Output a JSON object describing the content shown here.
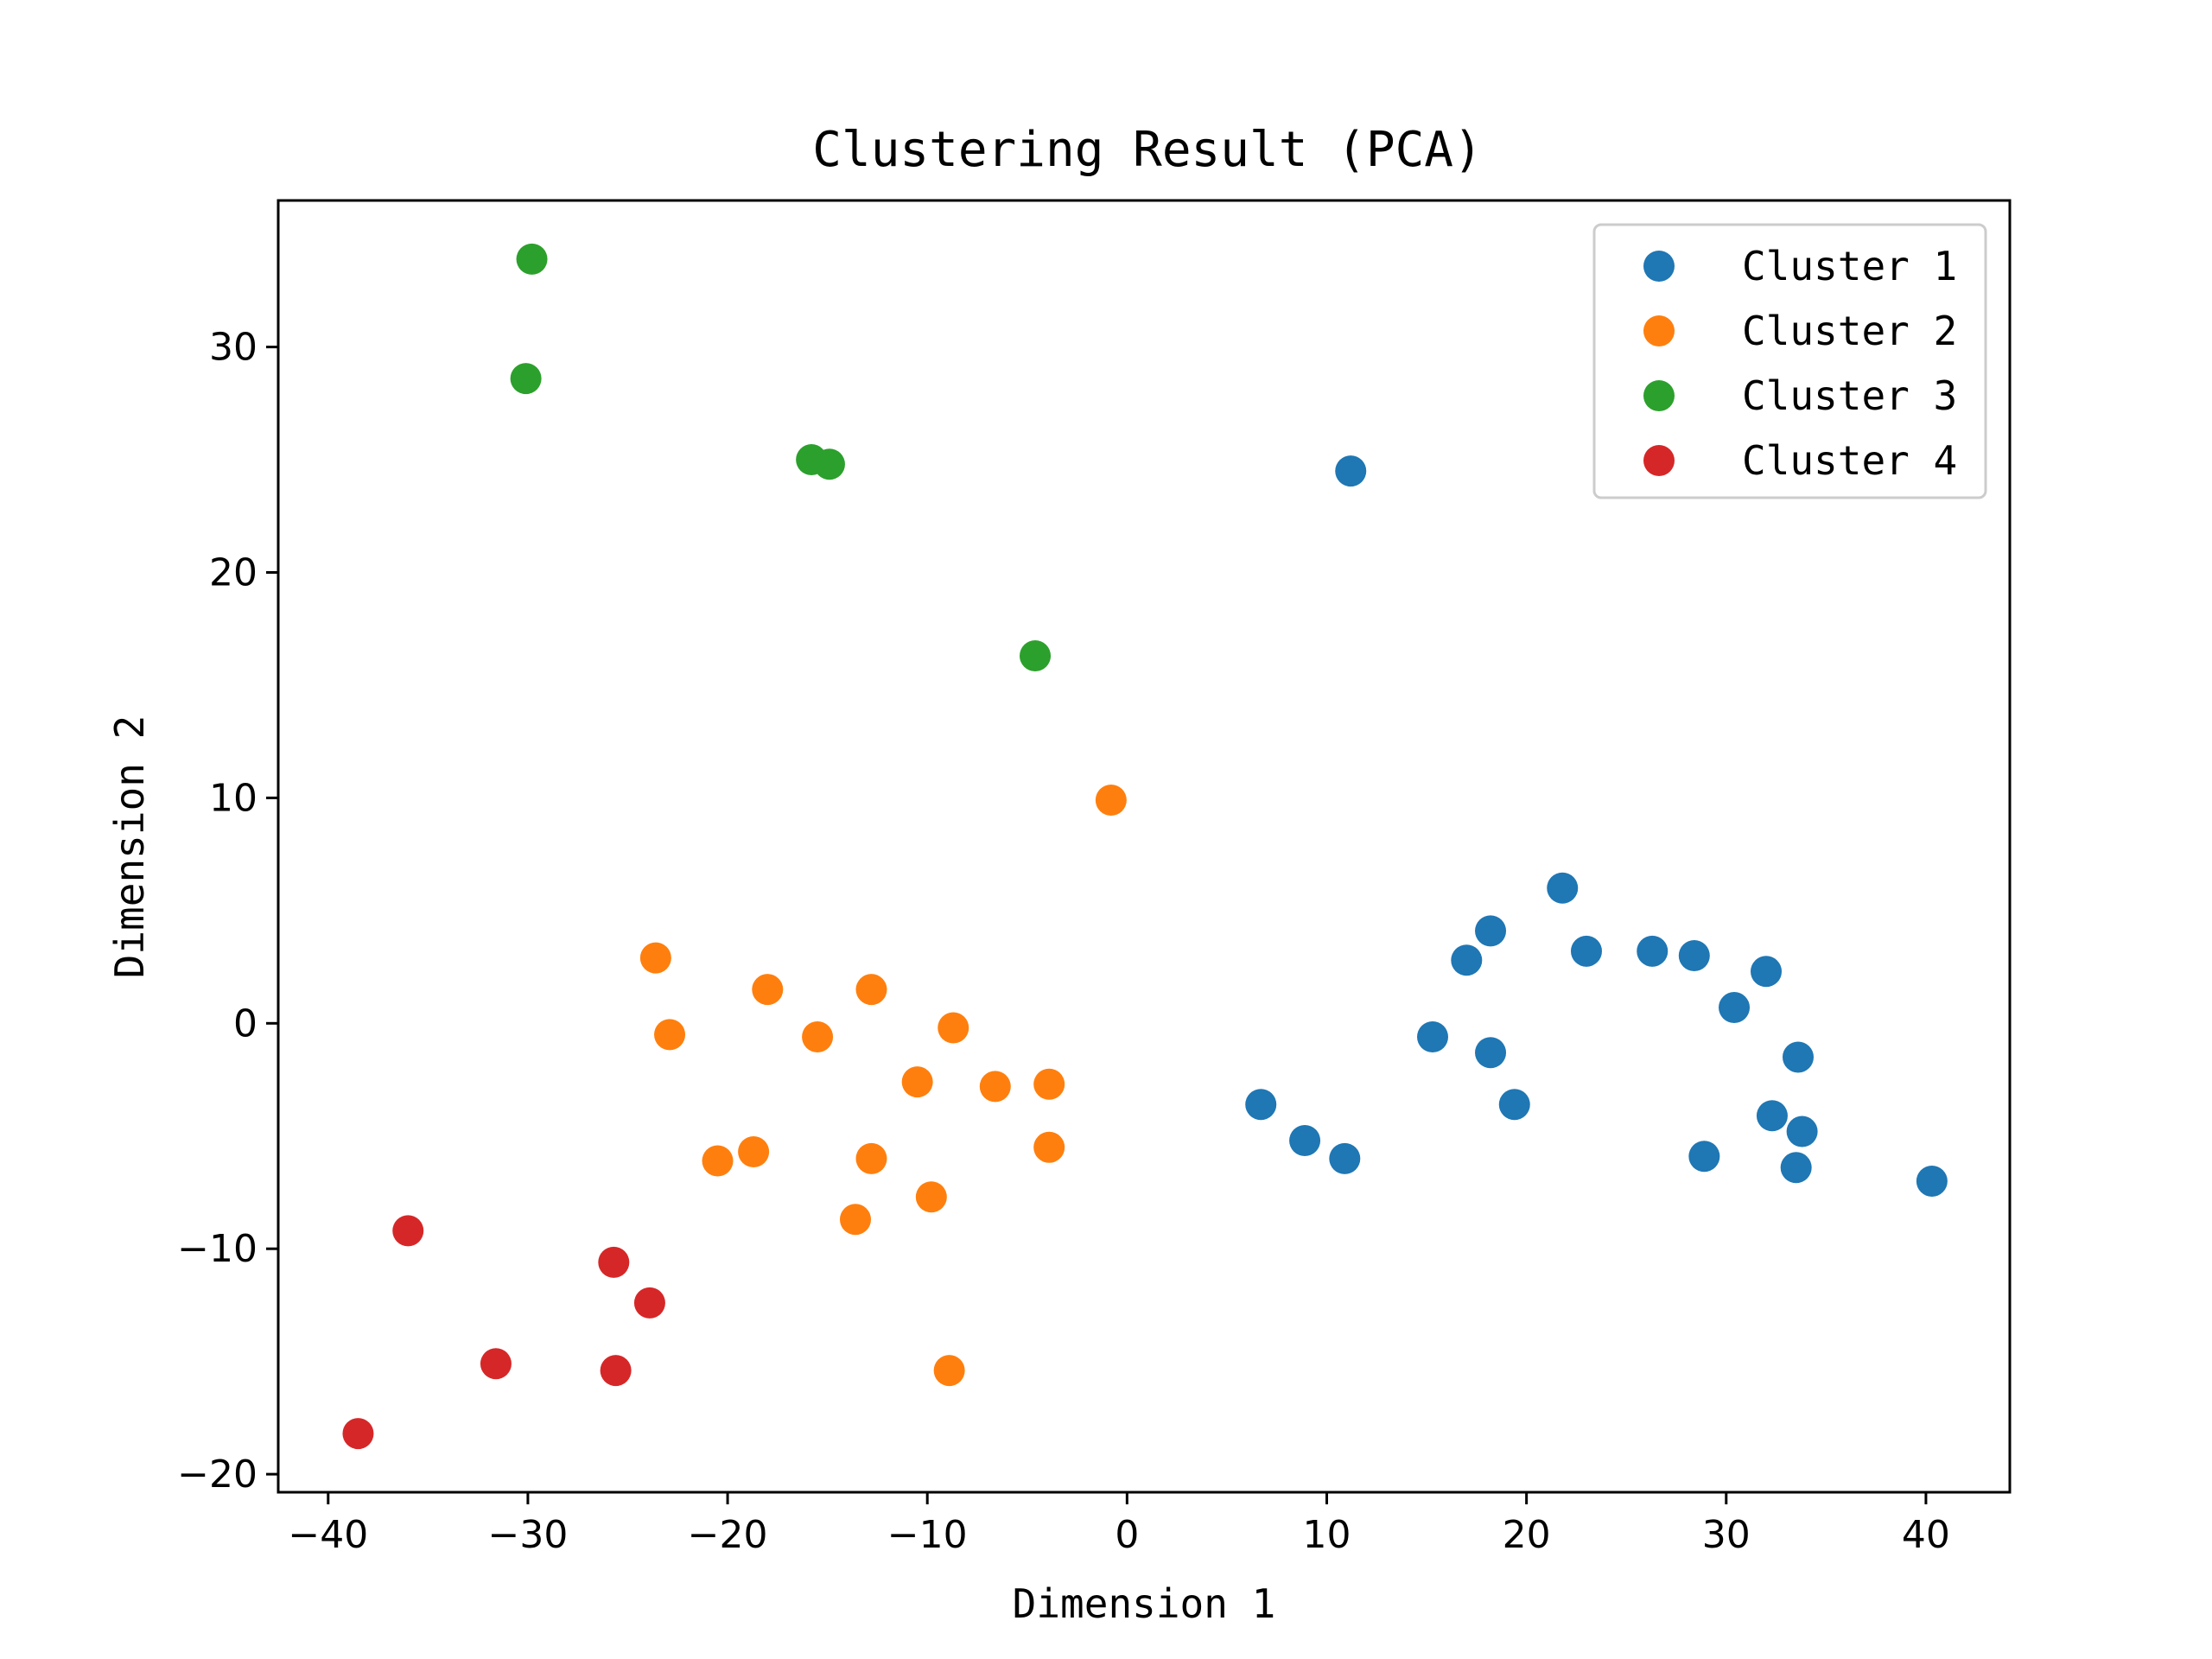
{
  "chart_data": {
    "type": "scatter",
    "title": "Clustering Result (PCA)",
    "xlabel": "Dimension 1",
    "ylabel": "Dimension 2",
    "xlim": [
      -42.5,
      44.2
    ],
    "ylim": [
      -20.8,
      36.5
    ],
    "xticks": [
      -40,
      -30,
      -20,
      -10,
      0,
      10,
      20,
      30,
      40
    ],
    "xtick_labels": [
      "−40",
      "−30",
      "−20",
      "−10",
      "0",
      "10",
      "20",
      "30",
      "40"
    ],
    "yticks": [
      -20,
      -10,
      0,
      10,
      20,
      30
    ],
    "ytick_labels": [
      "−20",
      "−10",
      "0",
      "10",
      "20",
      "30"
    ],
    "grid": false,
    "legend_position": "top-right",
    "series": [
      {
        "name": "Cluster 1",
        "color": "#1f77b4",
        "points": [
          [
            11.2,
            24.5
          ],
          [
            21.8,
            6.0
          ],
          [
            18.2,
            4.1
          ],
          [
            17.0,
            2.8
          ],
          [
            23.0,
            3.2
          ],
          [
            26.3,
            3.2
          ],
          [
            28.4,
            3.0
          ],
          [
            32.0,
            2.3
          ],
          [
            30.4,
            0.7
          ],
          [
            15.3,
            -0.6
          ],
          [
            18.2,
            -1.3
          ],
          [
            33.6,
            -1.5
          ],
          [
            6.7,
            -3.6
          ],
          [
            19.4,
            -3.6
          ],
          [
            32.3,
            -4.1
          ],
          [
            33.8,
            -4.8
          ],
          [
            8.9,
            -5.2
          ],
          [
            10.9,
            -6.0
          ],
          [
            28.9,
            -5.9
          ],
          [
            33.5,
            -6.4
          ],
          [
            40.3,
            -7.0
          ]
        ]
      },
      {
        "name": "Cluster 2",
        "color": "#ff7f0e",
        "points": [
          [
            -0.8,
            9.9
          ],
          [
            -23.6,
            2.9
          ],
          [
            -18.0,
            1.5
          ],
          [
            -12.8,
            1.5
          ],
          [
            -22.9,
            -0.5
          ],
          [
            -15.5,
            -0.6
          ],
          [
            -8.7,
            -0.2
          ],
          [
            -10.5,
            -2.6
          ],
          [
            -6.6,
            -2.8
          ],
          [
            -3.9,
            -2.7
          ],
          [
            -20.5,
            -6.1
          ],
          [
            -18.7,
            -5.7
          ],
          [
            -12.8,
            -6.0
          ],
          [
            -3.9,
            -5.5
          ],
          [
            -9.8,
            -7.7
          ],
          [
            -13.6,
            -8.7
          ],
          [
            -8.9,
            -15.4
          ]
        ]
      },
      {
        "name": "Cluster 3",
        "color": "#2ca02c",
        "points": [
          [
            -29.8,
            33.9
          ],
          [
            -30.1,
            28.6
          ],
          [
            -15.8,
            25.0
          ],
          [
            -14.9,
            24.8
          ],
          [
            -4.6,
            16.3
          ]
        ]
      },
      {
        "name": "Cluster 4",
        "color": "#d62728",
        "points": [
          [
            -36.0,
            -9.2
          ],
          [
            -25.7,
            -10.6
          ],
          [
            -23.9,
            -12.4
          ],
          [
            -31.6,
            -15.1
          ],
          [
            -25.6,
            -15.4
          ],
          [
            -38.5,
            -18.2
          ]
        ]
      }
    ]
  }
}
